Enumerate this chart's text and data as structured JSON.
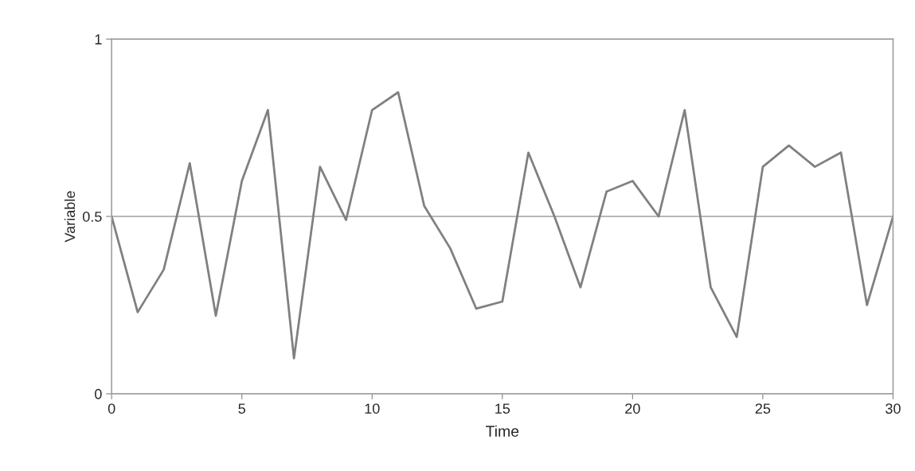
{
  "chart_data": {
    "type": "line",
    "xlabel": "Time",
    "ylabel": "Variable",
    "x": [
      0,
      1,
      2,
      3,
      4,
      5,
      6,
      7,
      8,
      9,
      10,
      11,
      12,
      13,
      14,
      15,
      16,
      17,
      18,
      19,
      20,
      21,
      22,
      23,
      24,
      25,
      26,
      27,
      28,
      29,
      30
    ],
    "series": [
      {
        "color": "#808080",
        "values": [
          0.5,
          0.23,
          0.35,
          0.65,
          0.22,
          0.6,
          0.8,
          0.1,
          0.64,
          0.49,
          0.8,
          0.85,
          0.53,
          0.41,
          0.24,
          0.26,
          0.68,
          0.5,
          0.3,
          0.57,
          0.6,
          0.5,
          0.8,
          0.3,
          0.16,
          0.64,
          0.7,
          0.64,
          0.68,
          0.25,
          0.5
        ]
      }
    ],
    "xlim": [
      0,
      30
    ],
    "xticks": [
      0,
      5,
      10,
      15,
      20,
      25,
      30
    ],
    "ylim": [
      0,
      1
    ],
    "yticks": [
      0,
      0.5,
      1
    ],
    "grid": "y",
    "legend": false,
    "marker": "none",
    "line_style": "solid"
  }
}
